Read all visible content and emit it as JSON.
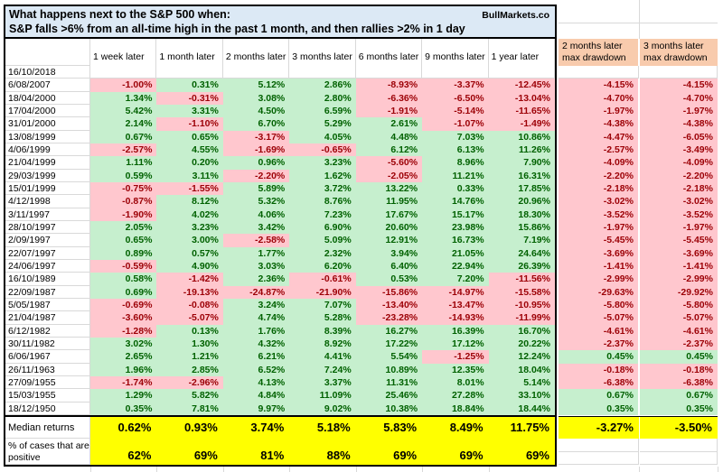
{
  "title": {
    "line1": "What happens next to the S&P 500 when:",
    "line2": "S&P falls >6% from an all-time high in the past 1 month, and then rallies >2% in 1 day",
    "brand": "BullMarkets.co"
  },
  "columns": [
    "1 week later",
    "1 month later",
    "2 months later",
    "3 months later",
    "6 months later",
    "9 months later",
    "1 year later"
  ],
  "drawdown_columns": [
    {
      "line1": "2 months later",
      "line2": "max drawdown"
    },
    {
      "line1": "3 months later",
      "line2": "max drawdown"
    }
  ],
  "rows": [
    {
      "date": "16/10/2018",
      "values": [
        "",
        "",
        "",
        "",
        "",
        "",
        ""
      ],
      "drawdowns": [
        "",
        ""
      ]
    },
    {
      "date": "6/08/2007",
      "values": [
        "-1.00%",
        "0.31%",
        "5.12%",
        "2.86%",
        "-8.93%",
        "-3.37%",
        "-12.45%"
      ],
      "drawdowns": [
        "-4.15%",
        "-4.15%"
      ]
    },
    {
      "date": "18/04/2000",
      "values": [
        "1.34%",
        "-0.31%",
        "3.08%",
        "2.80%",
        "-6.36%",
        "-6.50%",
        "-13.04%"
      ],
      "drawdowns": [
        "-4.70%",
        "-4.70%"
      ]
    },
    {
      "date": "17/04/2000",
      "values": [
        "5.42%",
        "3.31%",
        "4.50%",
        "6.59%",
        "-1.91%",
        "-5.14%",
        "-11.65%"
      ],
      "drawdowns": [
        "-1.97%",
        "-1.97%"
      ]
    },
    {
      "date": "31/01/2000",
      "values": [
        "2.14%",
        "-1.10%",
        "6.70%",
        "5.29%",
        "2.61%",
        "-1.07%",
        "-1.49%"
      ],
      "drawdowns": [
        "-4.38%",
        "-4.38%"
      ]
    },
    {
      "date": "13/08/1999",
      "values": [
        "0.67%",
        "0.65%",
        "-3.17%",
        "4.05%",
        "4.48%",
        "7.03%",
        "10.86%"
      ],
      "drawdowns": [
        "-4.47%",
        "-6.05%"
      ]
    },
    {
      "date": "4/06/1999",
      "values": [
        "-2.57%",
        "4.55%",
        "-1.69%",
        "-0.65%",
        "6.12%",
        "6.13%",
        "11.26%"
      ],
      "drawdowns": [
        "-2.57%",
        "-3.49%"
      ]
    },
    {
      "date": "21/04/1999",
      "values": [
        "1.11%",
        "0.20%",
        "0.96%",
        "3.23%",
        "-5.60%",
        "8.96%",
        "7.90%"
      ],
      "drawdowns": [
        "-4.09%",
        "-4.09%"
      ]
    },
    {
      "date": "29/03/1999",
      "values": [
        "0.59%",
        "3.11%",
        "-2.20%",
        "1.62%",
        "-2.05%",
        "11.21%",
        "16.31%"
      ],
      "drawdowns": [
        "-2.20%",
        "-2.20%"
      ]
    },
    {
      "date": "15/01/1999",
      "values": [
        "-0.75%",
        "-1.55%",
        "5.89%",
        "3.72%",
        "13.22%",
        "0.33%",
        "17.85%"
      ],
      "drawdowns": [
        "-2.18%",
        "-2.18%"
      ]
    },
    {
      "date": "4/12/1998",
      "values": [
        "-0.87%",
        "8.12%",
        "5.32%",
        "8.76%",
        "11.95%",
        "14.76%",
        "20.96%"
      ],
      "drawdowns": [
        "-3.02%",
        "-3.02%"
      ]
    },
    {
      "date": "3/11/1997",
      "values": [
        "-1.90%",
        "4.02%",
        "4.06%",
        "7.23%",
        "17.67%",
        "15.17%",
        "18.30%"
      ],
      "drawdowns": [
        "-3.52%",
        "-3.52%"
      ]
    },
    {
      "date": "28/10/1997",
      "values": [
        "2.05%",
        "3.23%",
        "3.42%",
        "6.90%",
        "20.60%",
        "23.98%",
        "15.86%"
      ],
      "drawdowns": [
        "-1.97%",
        "-1.97%"
      ]
    },
    {
      "date": "2/09/1997",
      "values": [
        "0.65%",
        "3.00%",
        "-2.58%",
        "5.09%",
        "12.91%",
        "16.73%",
        "7.19%"
      ],
      "drawdowns": [
        "-5.45%",
        "-5.45%"
      ]
    },
    {
      "date": "22/07/1997",
      "values": [
        "0.89%",
        "0.57%",
        "1.77%",
        "2.32%",
        "3.94%",
        "21.05%",
        "24.64%"
      ],
      "drawdowns": [
        "-3.69%",
        "-3.69%"
      ]
    },
    {
      "date": "24/06/1997",
      "values": [
        "-0.59%",
        "4.90%",
        "3.03%",
        "6.20%",
        "6.40%",
        "22.94%",
        "26.39%"
      ],
      "drawdowns": [
        "-1.41%",
        "-1.41%"
      ]
    },
    {
      "date": "16/10/1989",
      "values": [
        "0.58%",
        "-1.42%",
        "2.36%",
        "-0.61%",
        "0.53%",
        "7.20%",
        "-11.56%"
      ],
      "drawdowns": [
        "-2.99%",
        "-2.99%"
      ]
    },
    {
      "date": "22/09/1987",
      "values": [
        "0.69%",
        "-19.13%",
        "-24.87%",
        "-21.90%",
        "-15.86%",
        "-14.97%",
        "-15.58%"
      ],
      "drawdowns": [
        "-29.63%",
        "-29.92%"
      ]
    },
    {
      "date": "5/05/1987",
      "values": [
        "-0.69%",
        "-0.08%",
        "3.24%",
        "7.07%",
        "-13.40%",
        "-13.47%",
        "-10.95%"
      ],
      "drawdowns": [
        "-5.80%",
        "-5.80%"
      ]
    },
    {
      "date": "21/04/1987",
      "values": [
        "-3.60%",
        "-5.07%",
        "4.74%",
        "5.28%",
        "-23.28%",
        "-14.93%",
        "-11.99%"
      ],
      "drawdowns": [
        "-5.07%",
        "-5.07%"
      ]
    },
    {
      "date": "6/12/1982",
      "values": [
        "-1.28%",
        "0.13%",
        "1.76%",
        "8.39%",
        "16.27%",
        "16.39%",
        "16.70%"
      ],
      "drawdowns": [
        "-4.61%",
        "-4.61%"
      ]
    },
    {
      "date": "30/11/1982",
      "values": [
        "3.02%",
        "1.30%",
        "4.32%",
        "8.92%",
        "17.22%",
        "17.12%",
        "20.22%"
      ],
      "drawdowns": [
        "-2.37%",
        "-2.37%"
      ]
    },
    {
      "date": "6/06/1967",
      "values": [
        "2.65%",
        "1.21%",
        "6.21%",
        "4.41%",
        "5.54%",
        "-1.25%",
        "12.24%"
      ],
      "drawdowns": [
        "0.45%",
        "0.45%"
      ]
    },
    {
      "date": "26/11/1963",
      "values": [
        "1.96%",
        "2.85%",
        "6.52%",
        "7.24%",
        "10.89%",
        "12.35%",
        "18.04%"
      ],
      "drawdowns": [
        "-0.18%",
        "-0.18%"
      ]
    },
    {
      "date": "27/09/1955",
      "values": [
        "-1.74%",
        "-2.96%",
        "4.13%",
        "3.37%",
        "11.31%",
        "8.01%",
        "5.14%"
      ],
      "drawdowns": [
        "-6.38%",
        "-6.38%"
      ]
    },
    {
      "date": "15/03/1955",
      "values": [
        "1.29%",
        "5.82%",
        "4.84%",
        "11.09%",
        "25.46%",
        "27.28%",
        "33.10%"
      ],
      "drawdowns": [
        "0.67%",
        "0.67%"
      ]
    },
    {
      "date": "18/12/1950",
      "values": [
        "0.35%",
        "7.81%",
        "9.97%",
        "9.02%",
        "10.38%",
        "18.84%",
        "18.44%"
      ],
      "drawdowns": [
        "0.35%",
        "0.35%"
      ]
    }
  ],
  "summary": {
    "median_label": "Median returns",
    "median_values": [
      "0.62%",
      "0.93%",
      "3.74%",
      "5.18%",
      "5.83%",
      "8.49%",
      "11.75%"
    ],
    "median_drawdowns": [
      "-3.27%",
      "-3.50%"
    ],
    "positive_label": "% of cases that are positive",
    "positive_values": [
      "62%",
      "69%",
      "81%",
      "88%",
      "69%",
      "69%",
      "69%"
    ]
  },
  "colors": {
    "title_bg": "#DCE9F5",
    "header_bg": "#F8CBAD",
    "positive_bg": "#C6EFCE",
    "positive_text": "#006100",
    "negative_bg": "#FFC7CE",
    "negative_text": "#9C0006",
    "summary_bg": "#FFFF00",
    "grid_line": "#D9D9D9"
  }
}
